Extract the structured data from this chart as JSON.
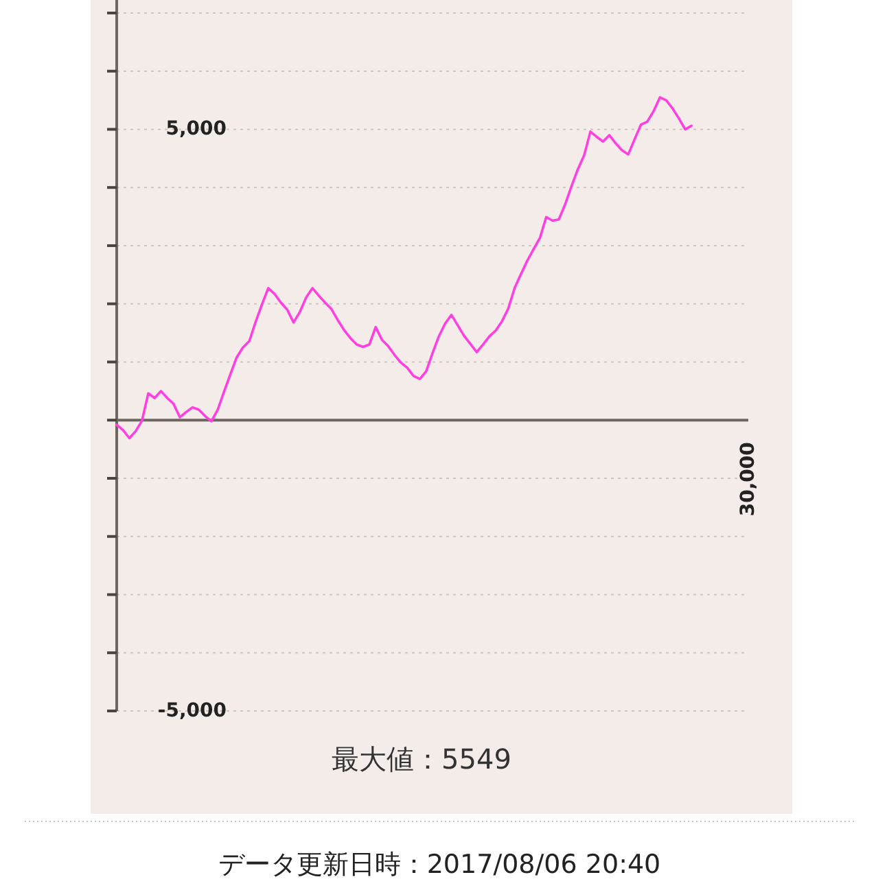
{
  "chart_data": {
    "type": "line",
    "categories": [
      null,
      null,
      null,
      null,
      null,
      null,
      null,
      null,
      null,
      null,
      null,
      null,
      null,
      null,
      null,
      null,
      null,
      null,
      null,
      null,
      null,
      null,
      null,
      null,
      null,
      null,
      null,
      null,
      null,
      null,
      null,
      null,
      null,
      null,
      null,
      null,
      null,
      null,
      null,
      null,
      null,
      null,
      null,
      null,
      null,
      null,
      null,
      null,
      null,
      null,
      null,
      null,
      null,
      null,
      null,
      null,
      null,
      null,
      null,
      null,
      null,
      null,
      null,
      null,
      null,
      null,
      null,
      null,
      null,
      null,
      null,
      null,
      null,
      null,
      null,
      null,
      null,
      null,
      null,
      null,
      null,
      null,
      null,
      null,
      null,
      null,
      null,
      null,
      null,
      null,
      null,
      null,
      null,
      null,
      null,
      null,
      null,
      null,
      null,
      null,
      "30,000"
    ],
    "series": [
      {
        "color": "#ff40e0",
        "values": [
          -80,
          -170,
          -310,
          -190,
          -10,
          460,
          380,
          500,
          380,
          280,
          50,
          140,
          220,
          180,
          70,
          -20,
          180,
          490,
          790,
          1080,
          1250,
          1360,
          1690,
          1990,
          2270,
          2170,
          2020,
          1900,
          1680,
          1860,
          2110,
          2270,
          2140,
          2020,
          1910,
          1720,
          1550,
          1410,
          1300,
          1260,
          1300,
          1600,
          1380,
          1270,
          1120,
          990,
          900,
          760,
          710,
          840,
          1150,
          1440,
          1660,
          1810,
          1630,
          1450,
          1310,
          1170,
          1300,
          1440,
          1540,
          1700,
          1920,
          2270,
          2510,
          2740,
          2940,
          3130,
          3490,
          3430,
          3450,
          3710,
          4020,
          4310,
          4550,
          4960,
          4870,
          4790,
          4900,
          4760,
          4640,
          4570,
          4830,
          5080,
          5130,
          5310,
          5549,
          5500,
          5360,
          5190,
          5000,
          5060,
          null,
          null,
          null,
          null,
          null,
          null,
          null,
          null,
          null
        ]
      }
    ],
    "ylim": [
      -5000,
      7200
    ],
    "yticks": [
      {
        "value": 7000,
        "label": null
      },
      {
        "value": 6000,
        "label": null
      },
      {
        "value": 5000,
        "label": "5,000"
      },
      {
        "value": 4000,
        "label": null
      },
      {
        "value": 3000,
        "label": null
      },
      {
        "value": 2000,
        "label": null
      },
      {
        "value": 1000,
        "label": null
      },
      {
        "value": 0,
        "label": null
      },
      {
        "value": -1000,
        "label": null
      },
      {
        "value": -2000,
        "label": null
      },
      {
        "value": -3000,
        "label": null
      },
      {
        "value": -4000,
        "label": null
      },
      {
        "value": -5000,
        "label": "-5,000"
      }
    ],
    "grid": "y",
    "line_style": "solid",
    "annotations": [
      "最大値：5549",
      "データ更新日時：2017/08/06 20:40"
    ]
  }
}
